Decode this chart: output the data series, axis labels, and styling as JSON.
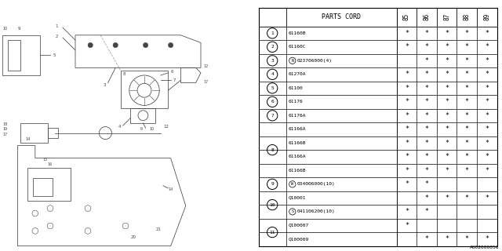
{
  "code": "A602000056",
  "bg_color": "#ffffff",
  "header": "PARTS CORD",
  "years": [
    "85",
    "86",
    "87",
    "88",
    "89"
  ],
  "rows": [
    {
      "circle_num": "1",
      "show_circle": true,
      "span_start": true,
      "span_end": true,
      "prefix": "",
      "part": "61160B",
      "marks": [
        1,
        1,
        1,
        1,
        1
      ]
    },
    {
      "circle_num": "2",
      "show_circle": true,
      "span_start": true,
      "span_end": true,
      "prefix": "",
      "part": "61160C",
      "marks": [
        1,
        1,
        1,
        1,
        1
      ]
    },
    {
      "circle_num": "3",
      "show_circle": true,
      "span_start": true,
      "span_end": true,
      "prefix": "N",
      "part": "023706000(4)",
      "marks": [
        0,
        1,
        1,
        1,
        1
      ]
    },
    {
      "circle_num": "4",
      "show_circle": true,
      "span_start": true,
      "span_end": true,
      "prefix": "",
      "part": "61270A",
      "marks": [
        1,
        1,
        1,
        1,
        1
      ]
    },
    {
      "circle_num": "5",
      "show_circle": true,
      "span_start": true,
      "span_end": true,
      "prefix": "",
      "part": "61100",
      "marks": [
        1,
        1,
        1,
        1,
        1
      ]
    },
    {
      "circle_num": "6",
      "show_circle": true,
      "span_start": true,
      "span_end": true,
      "prefix": "",
      "part": "61176",
      "marks": [
        1,
        1,
        1,
        1,
        1
      ]
    },
    {
      "circle_num": "7",
      "show_circle": true,
      "span_start": true,
      "span_end": true,
      "prefix": "",
      "part": "61176A",
      "marks": [
        1,
        1,
        1,
        1,
        1
      ]
    },
    {
      "circle_num": "8",
      "show_circle": false,
      "span_start": true,
      "span_end": false,
      "prefix": "",
      "part": "61166A",
      "marks": [
        1,
        1,
        1,
        1,
        1
      ]
    },
    {
      "circle_num": "8",
      "show_circle": false,
      "span_start": false,
      "span_end": false,
      "prefix": "",
      "part": "61166B",
      "marks": [
        1,
        1,
        1,
        1,
        1
      ]
    },
    {
      "circle_num": "8",
      "show_circle": true,
      "span_start": false,
      "span_end": false,
      "prefix": "",
      "part": "61166A",
      "marks": [
        1,
        1,
        1,
        1,
        1
      ]
    },
    {
      "circle_num": "8",
      "show_circle": false,
      "span_start": false,
      "span_end": true,
      "prefix": "",
      "part": "61166B",
      "marks": [
        1,
        1,
        1,
        1,
        1
      ]
    },
    {
      "circle_num": "9",
      "show_circle": true,
      "span_start": true,
      "span_end": true,
      "prefix": "W",
      "part": "034006000(10)",
      "marks": [
        1,
        1,
        0,
        0,
        0
      ]
    },
    {
      "circle_num": "10",
      "show_circle": false,
      "span_start": true,
      "span_end": false,
      "prefix": "",
      "part": "Q10001",
      "marks": [
        0,
        1,
        1,
        1,
        1
      ]
    },
    {
      "circle_num": "10",
      "show_circle": true,
      "span_start": false,
      "span_end": true,
      "prefix": "S",
      "part": "041106200(10)",
      "marks": [
        1,
        1,
        0,
        0,
        0
      ]
    },
    {
      "circle_num": "11",
      "show_circle": false,
      "span_start": true,
      "span_end": false,
      "prefix": "",
      "part": "Q100007",
      "marks": [
        1,
        0,
        0,
        0,
        0
      ]
    },
    {
      "circle_num": "11",
      "show_circle": true,
      "span_start": false,
      "span_end": true,
      "prefix": "",
      "part": "Q100009",
      "marks": [
        0,
        1,
        1,
        1,
        1
      ]
    }
  ]
}
